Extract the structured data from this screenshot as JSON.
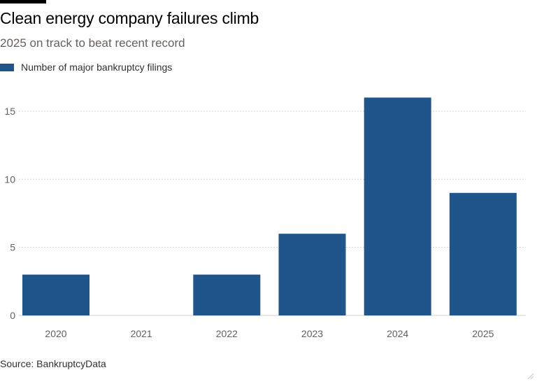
{
  "header": {
    "title": "Clean energy company failures climb",
    "subtitle": "2025 on track to beat recent record"
  },
  "legend": {
    "label": "Number of major bankruptcy filings"
  },
  "footer": {
    "source": "Source: BankruptcyData"
  },
  "colors": {
    "bar": "#1f558a",
    "grid": "#d4d0cc",
    "axis": "#66605c",
    "accent_rule": "#000000"
  },
  "chart_data": {
    "type": "bar",
    "categories": [
      "2020",
      "2021",
      "2022",
      "2023",
      "2024",
      "2025"
    ],
    "series": [
      {
        "name": "Number of major bankruptcy filings",
        "values": [
          3,
          0,
          3,
          6,
          16,
          9
        ]
      }
    ],
    "title": "Clean energy company failures climb",
    "subtitle": "2025 on track to beat recent record",
    "xlabel": "",
    "ylabel": "",
    "ylim": [
      0,
      17
    ],
    "yticks": [
      0,
      5,
      10,
      15
    ],
    "grid": true,
    "legend_position": "top-left"
  }
}
